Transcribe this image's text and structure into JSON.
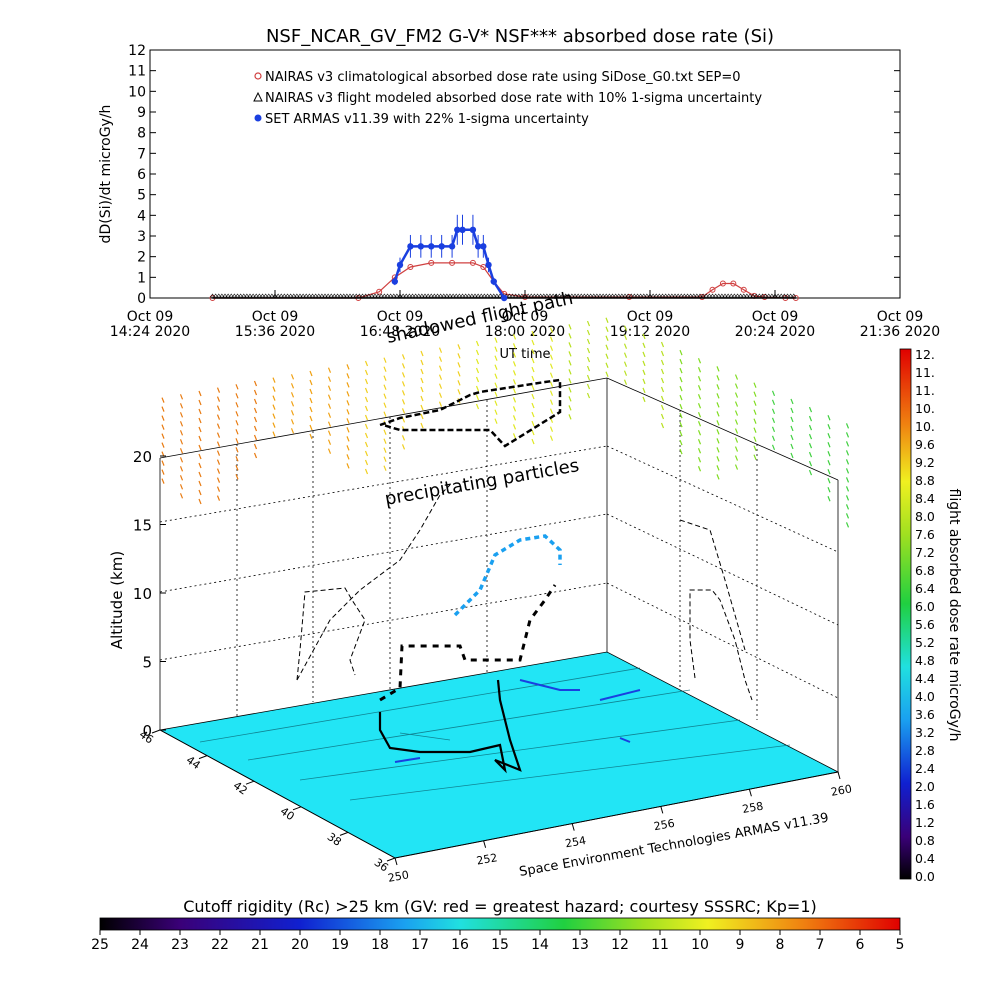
{
  "top_chart": {
    "title": "NSF_NCAR_GV_FM2 G-V* NSF*** absorbed dose rate (Si)",
    "ylabel": "dD(Si)/dt microGy/h",
    "xlabel": "UT time",
    "legend": [
      {
        "label": "NAIRAS v3 climatological absorbed dose rate using SiDose_G0.txt SEP=0",
        "color": "#d04040",
        "marker": "circle-open"
      },
      {
        "label": "NAIRAS v3 flight modeled absorbed dose rate with 10% 1-sigma uncertainty",
        "color": "#000000",
        "marker": "triangle-open"
      },
      {
        "label": "SET ARMAS v11.39 with 22% 1-sigma uncertainty",
        "color": "#1a3fe0",
        "marker": "dot"
      }
    ],
    "x_ticks": [
      {
        "line1": "Oct 09",
        "line2": "14:24 2020"
      },
      {
        "line1": "Oct 09",
        "line2": "15:36 2020"
      },
      {
        "line1": "Oct 09",
        "line2": "16:48 2020"
      },
      {
        "line1": "Oct 09",
        "line2": "18:00 2020"
      },
      {
        "line1": "Oct 09",
        "line2": "19:12 2020"
      },
      {
        "line1": "Oct 09",
        "line2": "20:24 2020"
      },
      {
        "line1": "Oct 09",
        "line2": "21:36 2020"
      }
    ],
    "y_ticks": [
      "0",
      "1",
      "2",
      "3",
      "4",
      "5",
      "6",
      "7",
      "8",
      "9",
      "10",
      "11",
      "12"
    ]
  },
  "chart_data": [
    {
      "type": "line",
      "title": "NSF_NCAR_GV_FM2 G-V* NSF*** absorbed dose rate (Si)",
      "xlabel": "UT time",
      "ylabel": "dD(Si)/dt microGy/h",
      "x_unit": "hours UT",
      "xlim": [
        14.4,
        21.6
      ],
      "ylim": [
        0,
        12
      ],
      "series": [
        {
          "name": "NAIRAS v3 climatological absorbed dose rate using SiDose_G0.txt SEP=0",
          "color": "#d04040",
          "x": [
            15.0,
            16.4,
            16.6,
            16.75,
            16.9,
            17.1,
            17.3,
            17.5,
            17.6,
            17.7,
            17.8,
            18.0,
            19.0,
            19.7,
            19.8,
            19.9,
            20.0,
            20.1,
            20.2,
            20.3,
            20.5,
            20.6
          ],
          "y": [
            0,
            0,
            0.3,
            1.0,
            1.5,
            1.7,
            1.7,
            1.7,
            1.5,
            0.8,
            0.2,
            0.05,
            0.05,
            0.05,
            0.4,
            0.7,
            0.7,
            0.4,
            0.1,
            0.05,
            0,
            0
          ]
        },
        {
          "name": "NAIRAS v3 flight modeled absorbed dose rate with 10% 1-sigma uncertainty",
          "color": "#000000",
          "x": [
            15.0,
            17.0,
            18.0,
            19.0,
            20.0,
            20.6
          ],
          "y": [
            0,
            0,
            0,
            0,
            0,
            0
          ]
        },
        {
          "name": "SET ARMAS v11.39 with 22% 1-sigma uncertainty",
          "color": "#1a3fe0",
          "x": [
            16.75,
            16.8,
            16.9,
            17.0,
            17.1,
            17.2,
            17.3,
            17.35,
            17.4,
            17.5,
            17.55,
            17.6,
            17.65,
            17.7,
            17.8
          ],
          "y": [
            0.8,
            1.6,
            2.5,
            2.5,
            2.5,
            2.5,
            2.5,
            3.3,
            3.3,
            3.3,
            2.5,
            2.5,
            1.6,
            0.8,
            0
          ]
        }
      ]
    },
    {
      "type": "scatter",
      "title": "",
      "xlabel": "",
      "ylabel": "Altitude (km)",
      "z_ticks": [
        "0",
        "5",
        "10",
        "15",
        "20"
      ],
      "lat_ticks": [
        "36",
        "38",
        "40",
        "42",
        "44",
        "46"
      ],
      "lon_ticks": [
        "250",
        "252",
        "254",
        "256",
        "258",
        "260"
      ],
      "annotations": [
        "shadowed flight path",
        "precipitating particles",
        "Space Environment Technologies ARMAS v11.39"
      ]
    }
  ],
  "colorbar_right": {
    "label": "flight absorbed dose rate microGy/h",
    "ticks": [
      "12.",
      "11.",
      "11.",
      "10.",
      "10.",
      "9.6",
      "9.2",
      "8.8",
      "8.4",
      "8.0",
      "7.6",
      "7.2",
      "6.8",
      "6.4",
      "6.0",
      "5.6",
      "5.2",
      "4.8",
      "4.4",
      "4.0",
      "3.6",
      "3.2",
      "2.8",
      "2.4",
      "2.0",
      "1.6",
      "1.2",
      "0.8",
      "0.4",
      "0.0"
    ]
  },
  "colorbar_bottom": {
    "label": "Cutoff rigidity (Rc) >25 km (GV: red = greatest hazard; courtesy SSSRC; Kp=1)",
    "ticks": [
      "25",
      "24",
      "23",
      "22",
      "21",
      "20",
      "19",
      "18",
      "17",
      "16",
      "15",
      "14",
      "13",
      "12",
      "11",
      "10",
      "9",
      "8",
      "7",
      "6",
      "5"
    ]
  },
  "colors": {
    "surface": "#22e5f5",
    "red_series": "#d04040",
    "blue_series": "#1a3fe0"
  }
}
